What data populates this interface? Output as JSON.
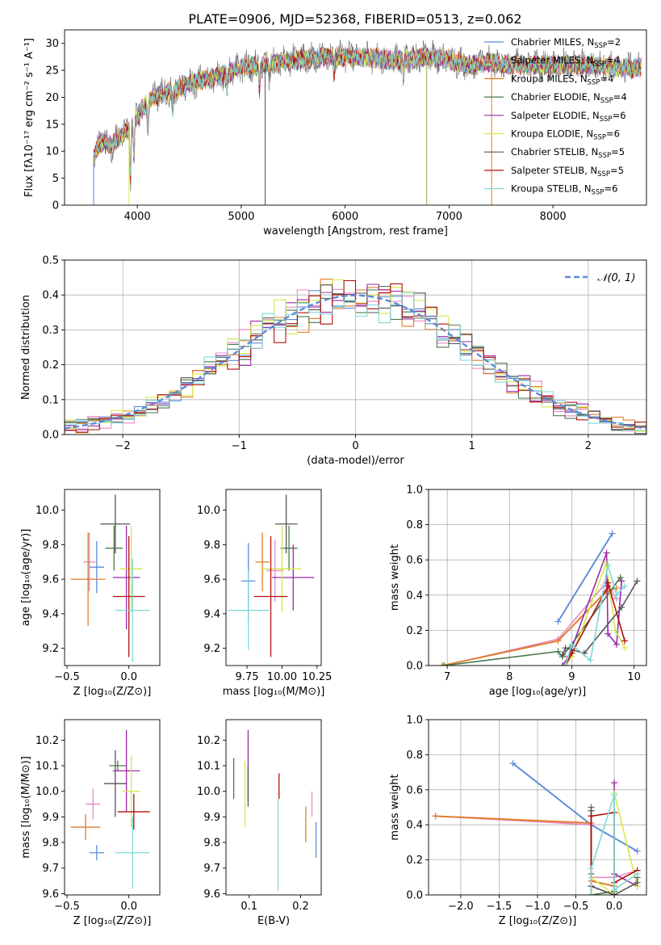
{
  "figure_title": "PLATE=0906, MJD=52368, FIBERID=0513, z=0.062",
  "colors": {
    "c0": "#5b8bd6",
    "c1": "#e889c4",
    "c2": "#e07b2a",
    "c3": "#4a7a4a",
    "c4": "#9b2aa6",
    "c5": "#d6e84a",
    "c6": "#555555",
    "c7": "#b01010",
    "c8": "#7fd8d8"
  },
  "chart_data": [
    {
      "id": "spectrum",
      "type": "line",
      "xlabel": "wavelength [Angstrom, rest frame]",
      "ylabel": "Flux [fλ10⁻¹⁷ erg cm⁻² s⁻¹ A⁻¹]",
      "xlim": [
        3300,
        8900
      ],
      "ylim": [
        0,
        32.5
      ],
      "xticks": [
        4000,
        5000,
        6000,
        7000,
        8000
      ],
      "yticks": [
        0,
        5,
        10,
        15,
        20,
        25,
        30
      ],
      "grid": false,
      "legend_position": "right",
      "continuum": {
        "x": [
          3580,
          3650,
          3750,
          3850,
          3950,
          4050,
          4150,
          4300,
          4450,
          4600,
          4800,
          5000,
          5200,
          5400,
          5600,
          5800,
          6000,
          6200,
          6400,
          6600,
          6800,
          7000,
          7200,
          7400,
          7600,
          7800,
          8000,
          8200,
          8400,
          8600,
          8800,
          8850
        ],
        "y": [
          9,
          12,
          11,
          13,
          15,
          18,
          20,
          21,
          22,
          23,
          24,
          25.5,
          26,
          26.5,
          27,
          27.5,
          27.5,
          27.5,
          27,
          27,
          27.5,
          27,
          26,
          26.5,
          26,
          26,
          26,
          26,
          26,
          25.5,
          25.5,
          25.5
        ]
      },
      "series": [
        {
          "name": "Chabrier MILES, N_SSP=2",
          "label_base": "Chabrier MILES, N",
          "label_sub": "SSP",
          "label_value": "=2",
          "color": "#5b8bd6"
        },
        {
          "name": "Salpeter MILES, N_SSP=4",
          "label_base": "Salpeter MILES, N",
          "label_sub": "SSP",
          "label_value": "=4",
          "color": "#e889c4"
        },
        {
          "name": "Kroupa MILES, N_SSP=4",
          "label_base": "Kroupa MILES, N",
          "label_sub": "SSP",
          "label_value": "=4",
          "color": "#e07b2a"
        },
        {
          "name": "Chabrier ELODIE, N_SSP=4",
          "label_base": "Chabrier ELODIE, N",
          "label_sub": "SSP",
          "label_value": "=4",
          "color": "#4a7a4a"
        },
        {
          "name": "Salpeter ELODIE, N_SSP=6",
          "label_base": "Salpeter ELODIE, N",
          "label_sub": "SSP",
          "label_value": "=6",
          "color": "#9b2aa6"
        },
        {
          "name": "Kroupa ELODIE, N_SSP=6",
          "label_base": "Kroupa ELODIE, N",
          "label_sub": "SSP",
          "label_value": "=6",
          "color": "#d6e84a"
        },
        {
          "name": "Chabrier STELIB, N_SSP=5",
          "label_base": "Chabrier STELIB, N",
          "label_sub": "SSP",
          "label_value": "=5",
          "color": "#555555"
        },
        {
          "name": "Salpeter STELIB, N_SSP=5",
          "label_base": "Salpeter STELIB, N",
          "label_sub": "SSP",
          "label_value": "=5",
          "color": "#b01010"
        },
        {
          "name": "Kroupa STELIB, N_SSP=6",
          "label_base": "Kroupa STELIB, N",
          "label_sub": "SSP",
          "label_value": "=6",
          "color": "#7fd8d8"
        }
      ]
    },
    {
      "id": "residuals",
      "type": "histogram",
      "xlabel": "(data-model)/error",
      "ylabel": "Normed distribution",
      "xlim": [
        -2.5,
        2.5
      ],
      "ylim": [
        0,
        0.5
      ],
      "xticks": [
        -2,
        -1,
        0,
        1,
        2
      ],
      "yticks": [
        0.0,
        0.1,
        0.2,
        0.3,
        0.4,
        0.5
      ],
      "grid": true,
      "legend": "𝒩(0, 1)",
      "legend_position": "top-right",
      "bin_width": 0.1,
      "reference_curve": "normal(0,1)"
    },
    {
      "id": "age_vs_Z",
      "type": "errorbar",
      "xlabel": "Z [log₁₀(Z/Z⊙)]",
      "ylabel": "age  [log₁₀(age/yr)]",
      "xlim": [
        -0.52,
        0.25
      ],
      "ylim": [
        9.1,
        10.12
      ],
      "xticks": [
        -0.5,
        0.0
      ],
      "yticks": [
        9.2,
        9.4,
        9.6,
        9.8,
        10.0
      ],
      "grid": false,
      "points": [
        {
          "x": -0.26,
          "xerr": 0.06,
          "y": 9.67,
          "yerr": 0.15,
          "color": "#5b8bd6"
        },
        {
          "x": -0.32,
          "xerr": 0.05,
          "y": 9.7,
          "yerr": 0.17,
          "color": "#e889c4"
        },
        {
          "x": -0.33,
          "xerr": 0.14,
          "y": 9.6,
          "yerr": 0.27,
          "color": "#e07b2a"
        },
        {
          "x": -0.12,
          "xerr": 0.07,
          "y": 9.78,
          "yerr": 0.13,
          "color": "#4a7a4a"
        },
        {
          "x": -0.02,
          "xerr": 0.11,
          "y": 9.61,
          "yerr": 0.3,
          "color": "#9b2aa6"
        },
        {
          "x": 0.02,
          "xerr": 0.09,
          "y": 9.66,
          "yerr": 0.25,
          "color": "#d6e84a"
        },
        {
          "x": -0.11,
          "xerr": 0.12,
          "y": 9.92,
          "yerr": 0.17,
          "color": "#555555"
        },
        {
          "x": 0.0,
          "xerr": 0.13,
          "y": 9.5,
          "yerr": 0.35,
          "color": "#b01010"
        },
        {
          "x": 0.03,
          "xerr": 0.14,
          "y": 9.42,
          "yerr": 0.3,
          "color": "#7fd8d8"
        }
      ]
    },
    {
      "id": "age_vs_mass",
      "type": "errorbar",
      "xlabel": "mass [log₁₀(M/M⊙)]",
      "ylabel": "",
      "xlim": [
        9.6,
        10.28
      ],
      "ylim": [
        9.1,
        10.12
      ],
      "xticks": [
        9.75,
        10.0,
        10.25
      ],
      "yticks": [
        9.2,
        9.4,
        9.6,
        9.8,
        10.0
      ],
      "grid": false,
      "points": [
        {
          "x": 9.76,
          "xerr": 0.05,
          "y": 9.59,
          "yerr": 0.22,
          "color": "#5b8bd6"
        },
        {
          "x": 9.95,
          "xerr": 0.06,
          "y": 9.65,
          "yerr": 0.18,
          "color": "#e889c4"
        },
        {
          "x": 9.86,
          "xerr": 0.05,
          "y": 9.7,
          "yerr": 0.17,
          "color": "#e07b2a"
        },
        {
          "x": 10.05,
          "xerr": 0.06,
          "y": 9.78,
          "yerr": 0.13,
          "color": "#4a7a4a"
        },
        {
          "x": 10.08,
          "xerr": 0.15,
          "y": 9.61,
          "yerr": 0.19,
          "color": "#9b2aa6"
        },
        {
          "x": 10.0,
          "xerr": 0.14,
          "y": 9.66,
          "yerr": 0.25,
          "color": "#d6e84a"
        },
        {
          "x": 10.03,
          "xerr": 0.08,
          "y": 9.92,
          "yerr": 0.17,
          "color": "#555555"
        },
        {
          "x": 9.92,
          "xerr": 0.12,
          "y": 9.5,
          "yerr": 0.35,
          "color": "#b01010"
        },
        {
          "x": 9.76,
          "xerr": 0.15,
          "y": 9.42,
          "yerr": 0.23,
          "color": "#7fd8d8"
        }
      ]
    },
    {
      "id": "weight_vs_age",
      "type": "line",
      "xlabel": "age  [log₁₀(age/yr)]",
      "ylabel": "mass weight",
      "xlim": [
        6.7,
        10.2
      ],
      "ylim": [
        0,
        1.0
      ],
      "xticks": [
        7,
        8,
        9,
        10
      ],
      "yticks": [
        0.0,
        0.2,
        0.4,
        0.6,
        0.8,
        1.0
      ],
      "grid": true,
      "series": [
        {
          "color": "#5b8bd6",
          "x": [
            8.78,
            9.65
          ],
          "y": [
            0.25,
            0.75
          ]
        },
        {
          "color": "#e889c4",
          "x": [
            6.95,
            8.78,
            9.55,
            9.72
          ],
          "y": [
            0.0,
            0.15,
            0.47,
            0.38
          ]
        },
        {
          "color": "#e07b2a",
          "x": [
            6.92,
            8.78,
            9.55,
            9.72
          ],
          "y": [
            0.0,
            0.14,
            0.42,
            0.44
          ]
        },
        {
          "color": "#4a7a4a",
          "x": [
            6.95,
            8.78,
            8.85,
            9.78
          ],
          "y": [
            0.0,
            0.08,
            0.05,
            0.5
          ]
        },
        {
          "color": "#9b2aa6",
          "x": [
            8.85,
            8.95,
            9.56,
            9.58,
            9.72,
            9.8
          ],
          "y": [
            0.0,
            0.05,
            0.64,
            0.18,
            0.12,
            0.48
          ]
        },
        {
          "color": "#d6e84a",
          "x": [
            8.9,
            9.0,
            9.55,
            9.7,
            9.85
          ],
          "y": [
            0.0,
            0.05,
            0.58,
            0.2,
            0.1
          ]
        },
        {
          "color": "#555555",
          "x": [
            8.85,
            8.9,
            9.2,
            9.8,
            10.05
          ],
          "y": [
            0.06,
            0.1,
            0.07,
            0.33,
            0.48
          ]
        },
        {
          "color": "#b01010",
          "x": [
            8.9,
            9.0,
            9.58,
            9.58,
            9.85
          ],
          "y": [
            0.0,
            0.07,
            0.45,
            0.47,
            0.14
          ]
        },
        {
          "color": "#7fd8d8",
          "x": [
            8.9,
            9.0,
            9.3,
            9.58,
            9.72,
            9.85
          ],
          "y": [
            0.0,
            0.12,
            0.03,
            0.57,
            0.4,
            0.45
          ]
        }
      ]
    },
    {
      "id": "mass_vs_Z",
      "type": "errorbar",
      "xlabel": "Z [log₁₀(Z/Z⊙)]",
      "ylabel": "mass [log₁₀(M/M⊙)]",
      "xlim": [
        -0.52,
        0.25
      ],
      "ylim": [
        9.595,
        10.28
      ],
      "xticks": [
        -0.5,
        0.0
      ],
      "yticks": [
        9.6,
        9.7,
        9.8,
        9.9,
        10.0,
        10.1,
        10.2
      ],
      "grid": false,
      "points": [
        {
          "x": -0.26,
          "xerr": 0.06,
          "y": 9.76,
          "yerr": 0.03,
          "color": "#5b8bd6"
        },
        {
          "x": -0.29,
          "xerr": 0.06,
          "y": 9.95,
          "yerr": 0.06,
          "color": "#e889c4"
        },
        {
          "x": -0.35,
          "xerr": 0.12,
          "y": 9.86,
          "yerr": 0.05,
          "color": "#e07b2a"
        },
        {
          "x": -0.09,
          "xerr": 0.07,
          "y": 10.1,
          "yerr": 0.02,
          "color": "#4a7a4a"
        },
        {
          "x": -0.02,
          "xerr": 0.11,
          "y": 10.08,
          "yerr": 0.16,
          "color": "#9b2aa6"
        },
        {
          "x": 0.02,
          "xerr": 0.07,
          "y": 10.0,
          "yerr": 0.14,
          "color": "#d6e84a"
        },
        {
          "x": -0.11,
          "xerr": 0.09,
          "y": 10.03,
          "yerr": 0.13,
          "color": "#555555"
        },
        {
          "x": 0.04,
          "xerr": 0.13,
          "y": 9.92,
          "yerr": 0.07,
          "color": "#b01010"
        },
        {
          "x": 0.03,
          "xerr": 0.14,
          "y": 9.76,
          "yerr": 0.14,
          "color": "#7fd8d8"
        }
      ]
    },
    {
      "id": "mass_vs_ebv",
      "type": "errorbar",
      "xlabel": "E(B-V)",
      "ylabel": "",
      "xlim": [
        0.055,
        0.24
      ],
      "ylim": [
        9.595,
        10.28
      ],
      "xticks": [
        0.1,
        0.2
      ],
      "yticks": [
        9.6,
        9.7,
        9.8,
        9.9,
        10.0,
        10.1,
        10.2
      ],
      "grid": false,
      "points": [
        {
          "x": 0.23,
          "xerr": 0,
          "y": 9.81,
          "yerr": 0.07,
          "color": "#5b8bd6"
        },
        {
          "x": 0.222,
          "xerr": 0,
          "y": 9.95,
          "yerr": 0.05,
          "color": "#e889c4"
        },
        {
          "x": 0.21,
          "xerr": 0,
          "y": 9.87,
          "yerr": 0.07,
          "color": "#e07b2a"
        },
        {
          "x": 0.07,
          "xerr": 0,
          "y": 10.05,
          "yerr": 0.08,
          "color": "#4a7a4a"
        },
        {
          "x": 0.098,
          "xerr": 0,
          "y": 10.1,
          "yerr": 0.14,
          "color": "#9b2aa6"
        },
        {
          "x": 0.092,
          "xerr": 0,
          "y": 9.99,
          "yerr": 0.13,
          "color": "#d6e84a"
        },
        {
          "x": 0.098,
          "xerr": 0,
          "y": 10.02,
          "yerr": 0.08,
          "color": "#555555"
        },
        {
          "x": 0.158,
          "xerr": 0,
          "y": 10.02,
          "yerr": 0.05,
          "color": "#b01010"
        },
        {
          "x": 0.156,
          "xerr": 0,
          "y": 9.79,
          "yerr": 0.18,
          "color": "#7fd8d8"
        }
      ]
    },
    {
      "id": "weight_vs_Z",
      "type": "line",
      "xlabel": "Z [log₁₀(Z/Z⊙)]",
      "ylabel": "mass weight",
      "xlim": [
        -2.42,
        0.42
      ],
      "ylim": [
        0,
        1.0
      ],
      "xticks": [
        -2.0,
        -1.5,
        -1.0,
        -0.5,
        0.0
      ],
      "yticks": [
        0.0,
        0.2,
        0.4,
        0.6,
        0.8,
        1.0
      ],
      "grid": true,
      "series": [
        {
          "color": "#5b8bd6",
          "x": [
            -1.32,
            -0.3,
            0.3
          ],
          "y": [
            0.75,
            0.4,
            0.25
          ]
        },
        {
          "color": "#e889c4",
          "x": [
            -2.33,
            -0.3,
            -0.3,
            0.0,
            0.3
          ],
          "y": [
            0.45,
            0.4,
            0.1,
            0.1,
            0.14
          ]
        },
        {
          "color": "#e07b2a",
          "x": [
            -2.33,
            -0.3,
            -0.3,
            0.0
          ],
          "y": [
            0.45,
            0.41,
            0.08,
            0.05
          ]
        },
        {
          "color": "#4a7a4a",
          "x": [
            -0.3,
            -0.3,
            -0.3,
            0.0
          ],
          "y": [
            0.5,
            0.12,
            0.0,
            0.02
          ]
        },
        {
          "color": "#9b2aa6",
          "x": [
            -0.3,
            -0.3,
            0.0,
            0.0,
            0.0,
            0.3
          ],
          "y": [
            0.45,
            0.05,
            0.0,
            0.64,
            0.12,
            0.05
          ]
        },
        {
          "color": "#d6e84a",
          "x": [
            -0.3,
            -0.3,
            0.0,
            0.0,
            0.3
          ],
          "y": [
            0.0,
            0.1,
            0.0,
            0.58,
            0.05
          ]
        },
        {
          "color": "#555555",
          "x": [
            -0.3,
            -0.3,
            0.0,
            0.3,
            0.3
          ],
          "y": [
            0.48,
            0.05,
            0.0,
            0.07,
            0.1
          ]
        },
        {
          "color": "#b01010",
          "x": [
            -0.3,
            -0.3,
            0.0,
            0.0,
            0.3
          ],
          "y": [
            0.0,
            0.45,
            0.47,
            0.07,
            0.14
          ]
        },
        {
          "color": "#7fd8d8",
          "x": [
            -0.3,
            -0.3,
            0.0,
            0.0,
            0.3
          ],
          "y": [
            0.0,
            0.15,
            0.57,
            0.03,
            0.12
          ]
        }
      ]
    }
  ]
}
